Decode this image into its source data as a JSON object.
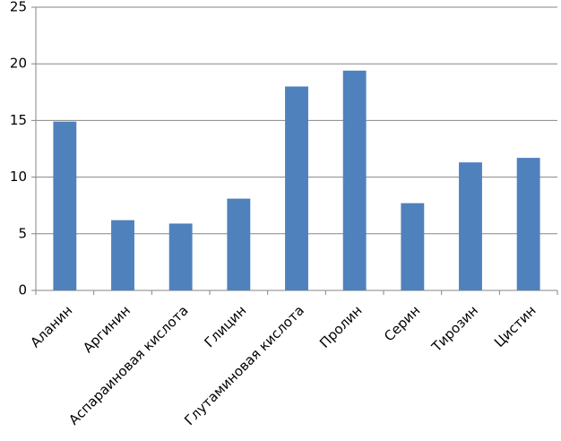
{
  "chart_data": {
    "type": "bar",
    "categories": [
      "Аланин",
      "Аргинин",
      "Аспараиновая кислота",
      "Глицин",
      "Глутаминовая кислота",
      "Пролин",
      "Серин",
      "Тирозин",
      "Цистин"
    ],
    "values": [
      14.9,
      6.2,
      5.9,
      8.1,
      18.0,
      19.4,
      7.7,
      11.3,
      11.7
    ],
    "color": "#4f81bd",
    "ylim": [
      0,
      25
    ],
    "yticks": [
      0,
      5,
      10,
      15,
      20,
      25
    ],
    "grid": true
  }
}
